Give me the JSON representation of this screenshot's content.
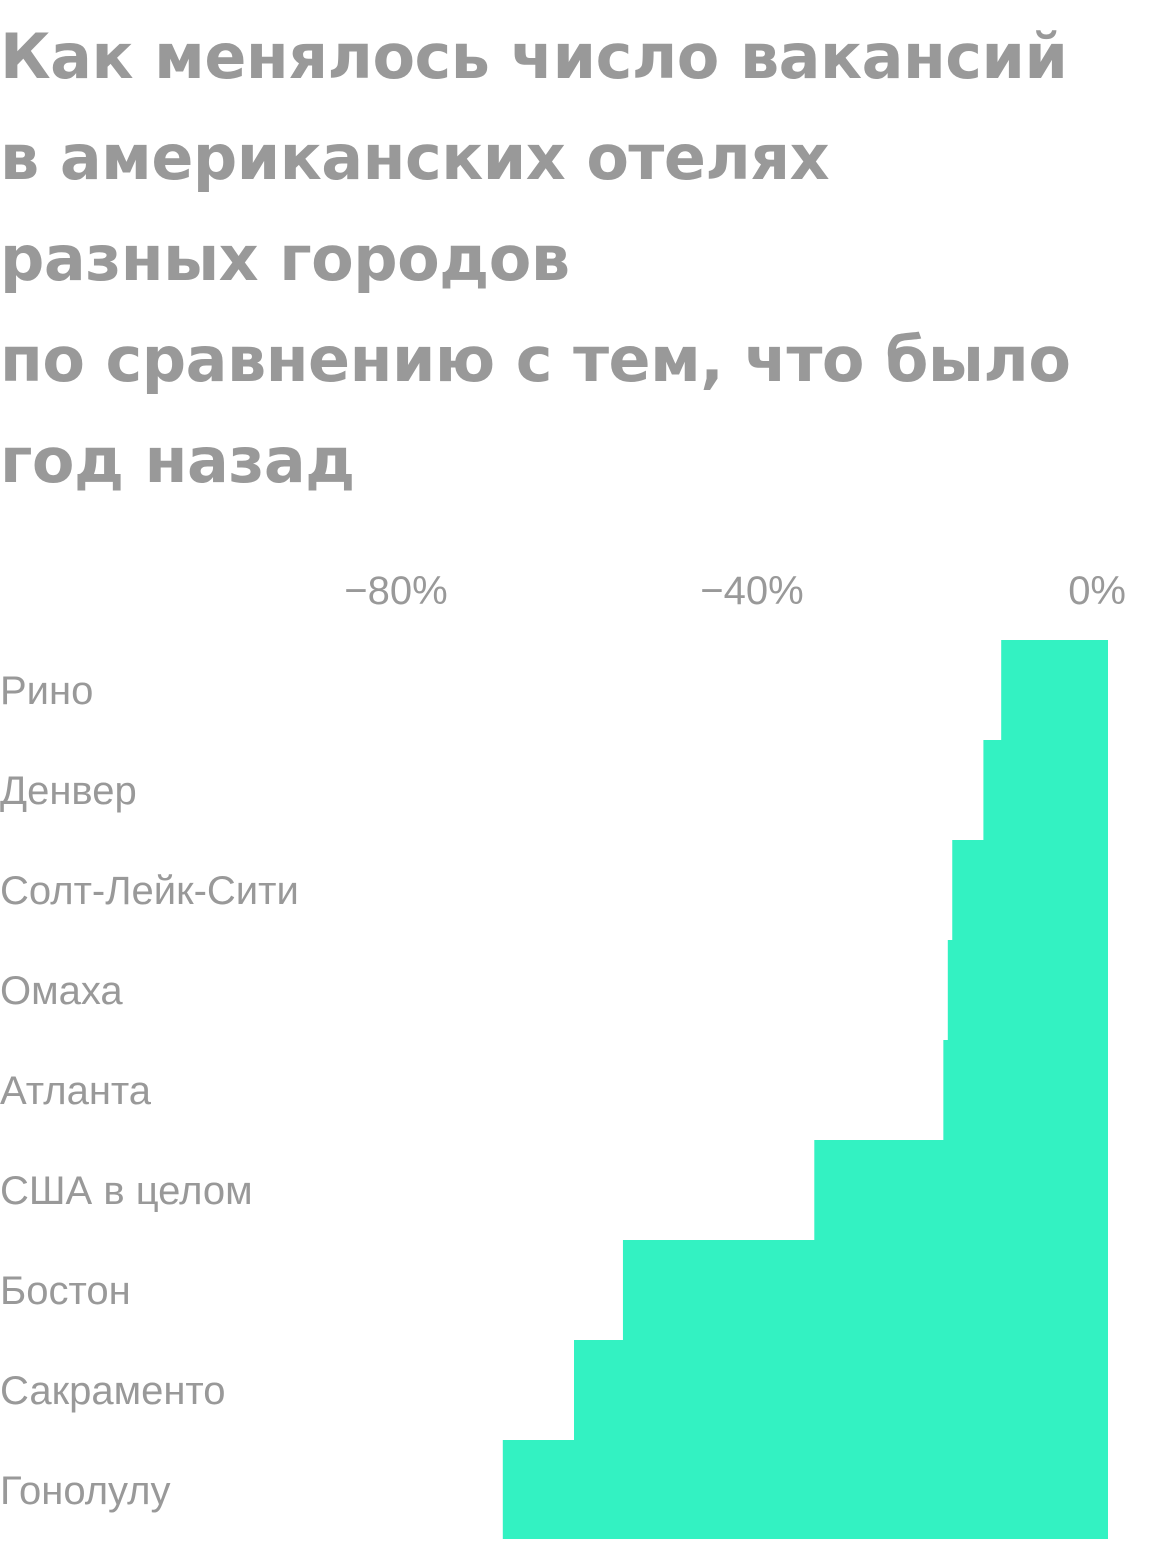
{
  "title_lines": [
    "Как менялось число вакансий",
    "в американских отелях",
    "разных городов",
    "по сравнению с тем, что было",
    "год назад"
  ],
  "colors": {
    "bar": "#33f2c2",
    "text": "#999999",
    "background": "#ffffff"
  },
  "chart_data": {
    "type": "bar",
    "orientation": "horizontal",
    "title": "Как менялось число вакансий в американских отелях разных городов по сравнению с тем, что было год назад",
    "categories": [
      "Рино",
      "Денвер",
      "Солт-Лейк-Сити",
      "Омаха",
      "Атланта",
      "США в целом",
      "Бостон",
      "Сакраменто",
      "Гонолулу"
    ],
    "values": [
      -12,
      -14,
      -17.5,
      -18,
      -18.5,
      -33,
      -54.5,
      -60,
      -68
    ],
    "xlim": [
      -100,
      0
    ],
    "ticks": [
      {
        "value": -80,
        "label": "−80%"
      },
      {
        "value": -40,
        "label": "−40%"
      },
      {
        "value": 0,
        "label": "0%"
      }
    ],
    "axis_position": "top",
    "grid": false,
    "legend": "none"
  }
}
